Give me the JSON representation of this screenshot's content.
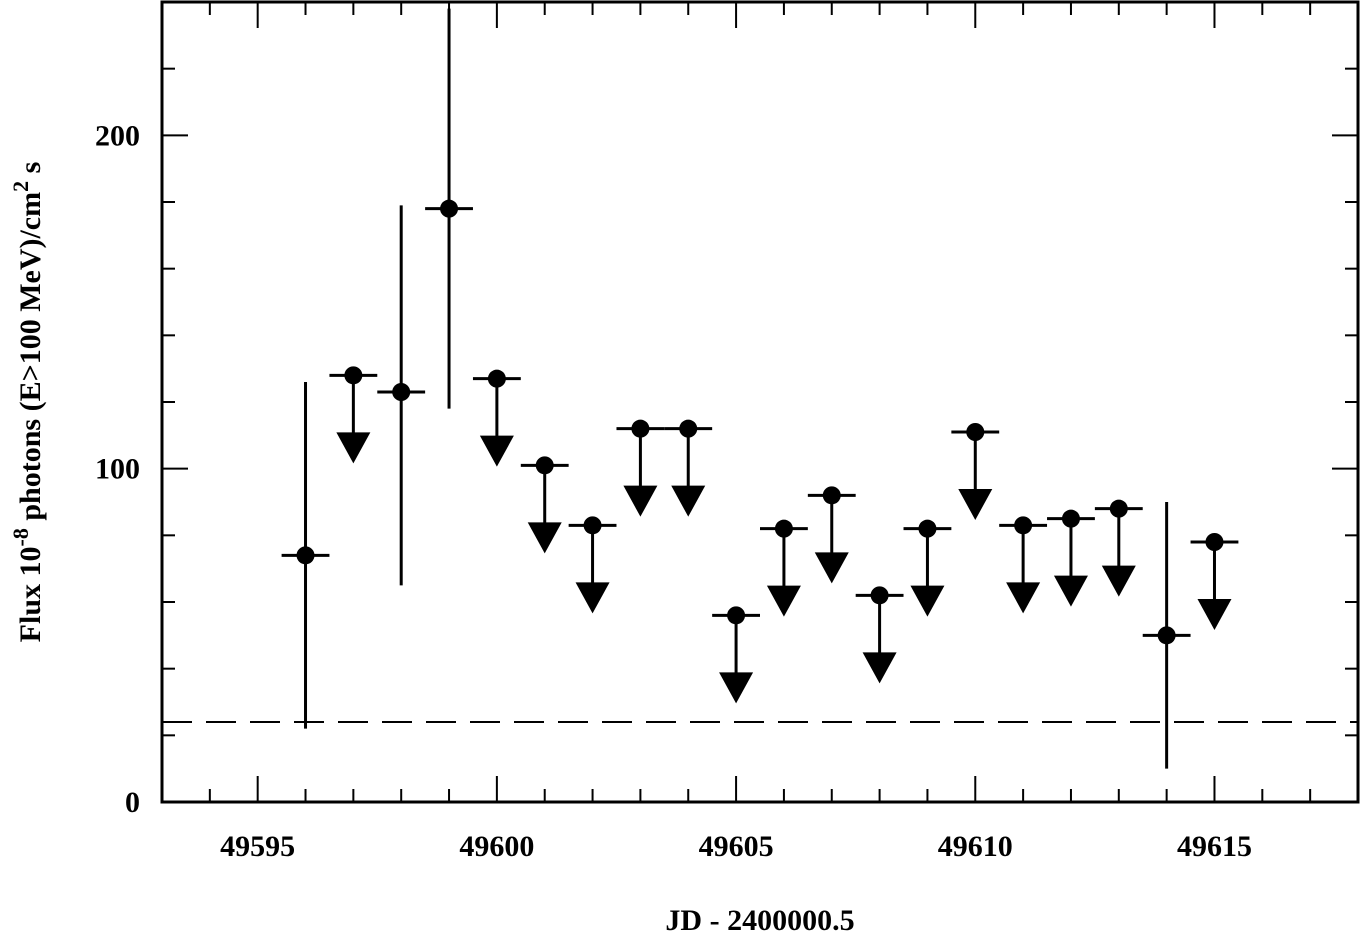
{
  "chart_data": {
    "type": "scatter",
    "title": "",
    "xlabel": "JD - 2400000.5",
    "ylabel": {
      "prefix": "Flux   10",
      "exponent": "-8",
      "middle": " photons (E>100 MeV)/cm",
      "exponent2": "2",
      "suffix": " s"
    },
    "xlim": [
      49593,
      49618
    ],
    "ylim": [
      0,
      240
    ],
    "x_ticks": [
      49595,
      49600,
      49605,
      49610,
      49615
    ],
    "x_tick_labels": [
      "49595",
      "49600",
      "49605",
      "49610",
      "49615"
    ],
    "y_ticks": [
      0,
      100,
      200
    ],
    "y_tick_labels": [
      "0",
      "100",
      "200"
    ],
    "x_minor_step": 1,
    "y_minor_step": 20,
    "grid": false,
    "reference_line": {
      "y": 24,
      "style": "dashed"
    },
    "series": [
      {
        "points": [
          {
            "x": 49596,
            "y": 74,
            "upper_limit": false,
            "err_low": 22,
            "err_high": 126
          },
          {
            "x": 49597,
            "y": 128,
            "upper_limit": true
          },
          {
            "x": 49598,
            "y": 123,
            "upper_limit": false,
            "err_low": 65,
            "err_high": 179
          },
          {
            "x": 49599,
            "y": 178,
            "upper_limit": false,
            "err_low": 118,
            "err_high": 238
          },
          {
            "x": 49600,
            "y": 127,
            "upper_limit": true
          },
          {
            "x": 49601,
            "y": 101,
            "upper_limit": true
          },
          {
            "x": 49602,
            "y": 83,
            "upper_limit": true
          },
          {
            "x": 49603,
            "y": 112,
            "upper_limit": true
          },
          {
            "x": 49604,
            "y": 112,
            "upper_limit": true
          },
          {
            "x": 49605,
            "y": 56,
            "upper_limit": true
          },
          {
            "x": 49606,
            "y": 82,
            "upper_limit": true
          },
          {
            "x": 49607,
            "y": 92,
            "upper_limit": true
          },
          {
            "x": 49608,
            "y": 62,
            "upper_limit": true
          },
          {
            "x": 49609,
            "y": 82,
            "upper_limit": true
          },
          {
            "x": 49610,
            "y": 111,
            "upper_limit": true
          },
          {
            "x": 49611,
            "y": 83,
            "upper_limit": true
          },
          {
            "x": 49612,
            "y": 85,
            "upper_limit": true
          },
          {
            "x": 49613,
            "y": 88,
            "upper_limit": true
          },
          {
            "x": 49614,
            "y": 50,
            "upper_limit": false,
            "err_low": 10,
            "err_high": 90
          },
          {
            "x": 49615,
            "y": 78,
            "upper_limit": true
          }
        ]
      }
    ]
  }
}
